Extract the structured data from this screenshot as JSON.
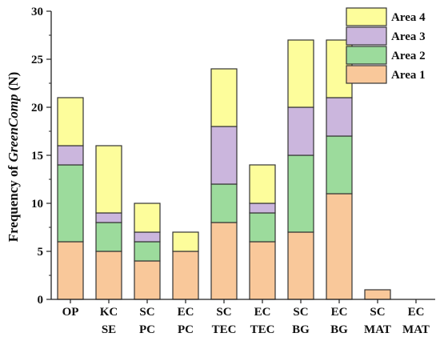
{
  "chart_data": {
    "type": "bar",
    "stacked": true,
    "categories": [
      [
        "OP",
        ""
      ],
      [
        "KC",
        "SE"
      ],
      [
        "SC",
        "PC"
      ],
      [
        "EC",
        "PC"
      ],
      [
        "SC",
        "TEC"
      ],
      [
        "EC",
        "TEC"
      ],
      [
        "SC",
        "BG"
      ],
      [
        "EC",
        "BG"
      ],
      [
        "SC",
        "MAT"
      ],
      [
        "EC",
        "MAT"
      ]
    ],
    "ylabel": {
      "prefix": "Frequency of ",
      "italic": "GreenComp",
      "suffix": " (N)"
    },
    "ylim": [
      0,
      30
    ],
    "yticks": [
      0,
      5,
      10,
      15,
      20,
      25,
      30
    ],
    "legend_position": "top-right",
    "series": [
      {
        "name": "Area 1",
        "color": "#f9c89a",
        "values": [
          6,
          5,
          4,
          5,
          8,
          6,
          7,
          11,
          1,
          0
        ]
      },
      {
        "name": "Area 2",
        "color": "#9cdb9c",
        "values": [
          8,
          3,
          2,
          0,
          4,
          3,
          8,
          6,
          0,
          0
        ]
      },
      {
        "name": "Area 3",
        "color": "#cbb6dd",
        "values": [
          2,
          1,
          1,
          0,
          6,
          1,
          5,
          4,
          0,
          0
        ]
      },
      {
        "name": "Area 4",
        "color": "#fdfd9b",
        "values": [
          5,
          7,
          3,
          2,
          6,
          4,
          7,
          6,
          0,
          0
        ]
      }
    ],
    "grid": false
  }
}
